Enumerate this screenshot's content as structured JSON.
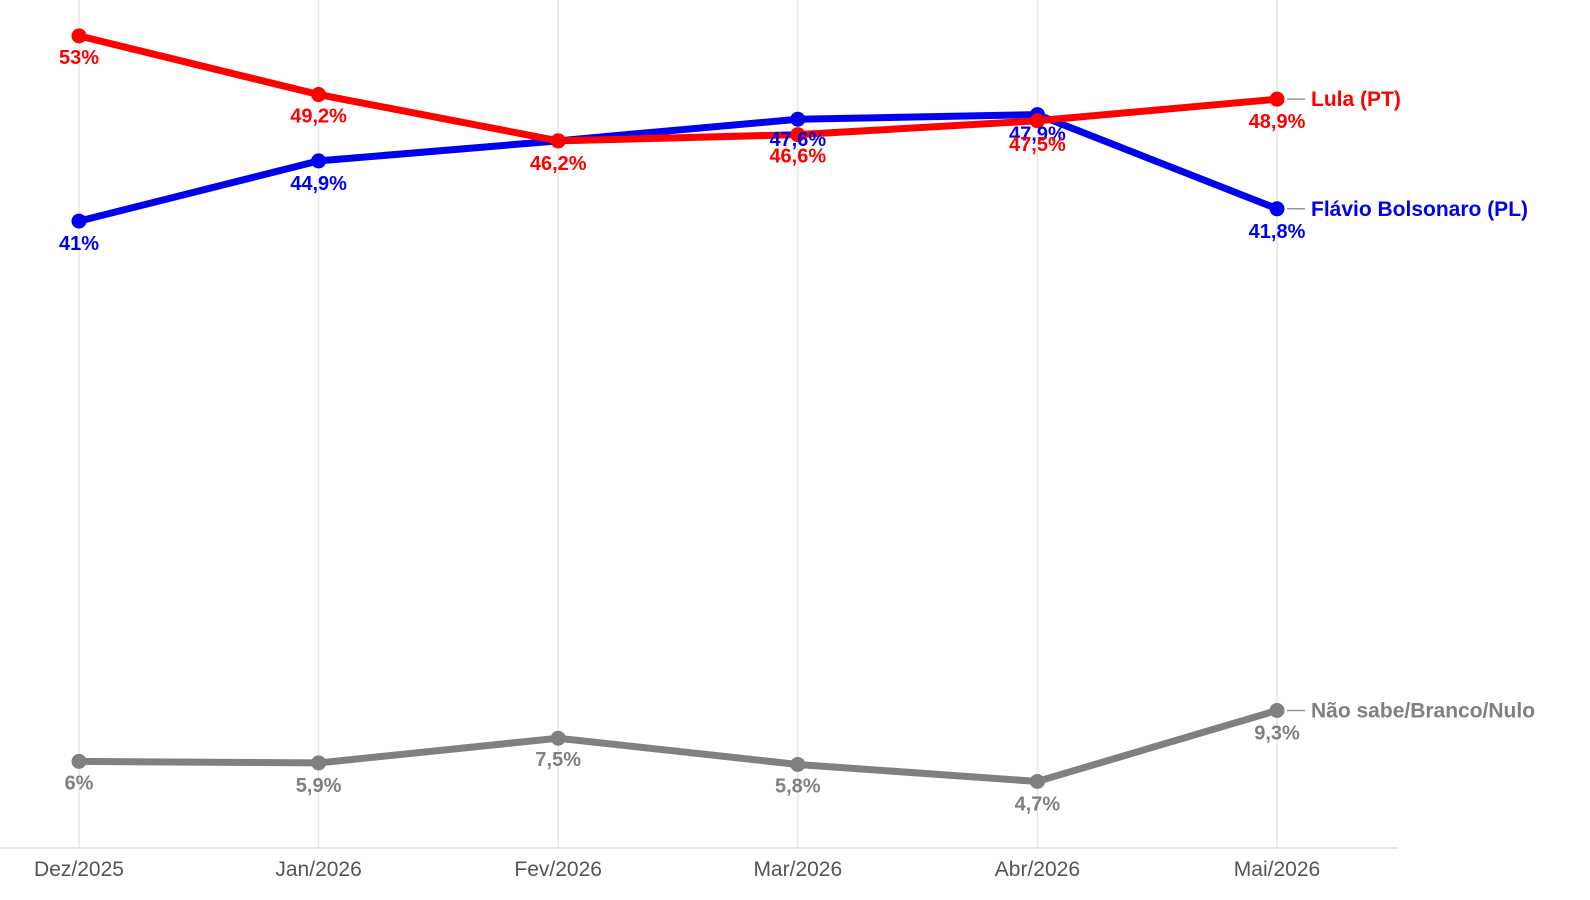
{
  "chart_data": {
    "type": "line",
    "categories": [
      "Dez/2025",
      "Jan/2026",
      "Fev/2026",
      "Mar/2026",
      "Abr/2026",
      "Mai/2026"
    ],
    "ylim": [
      0,
      55
    ],
    "grid": "vertical",
    "legend": "right-of-line-ends",
    "series": [
      {
        "name": "Não sabe/Branco/Nulo",
        "color": "#808080",
        "values": [
          6,
          5.9,
          7.5,
          5.8,
          4.7,
          9.3
        ],
        "labels": [
          "6%",
          "5,9%",
          "7,5%",
          "5,8%",
          "4,7%",
          "9,3%"
        ]
      },
      {
        "name": "Flávio Bolsonaro (PL)",
        "color": "#0000ee",
        "values": [
          41,
          44.9,
          46.2,
          47.6,
          47.9,
          41.8
        ],
        "labels": [
          "41%",
          "44,9%",
          "",
          "47,6%",
          "47,9%",
          "41,8%"
        ]
      },
      {
        "name": "Lula (PT)",
        "color": "#ff0000",
        "values": [
          53,
          49.2,
          46.2,
          46.6,
          47.5,
          48.9
        ],
        "labels": [
          "53%",
          "49,2%",
          "46,2%",
          "46,6%",
          "47,5%",
          "48,9%"
        ]
      }
    ]
  }
}
